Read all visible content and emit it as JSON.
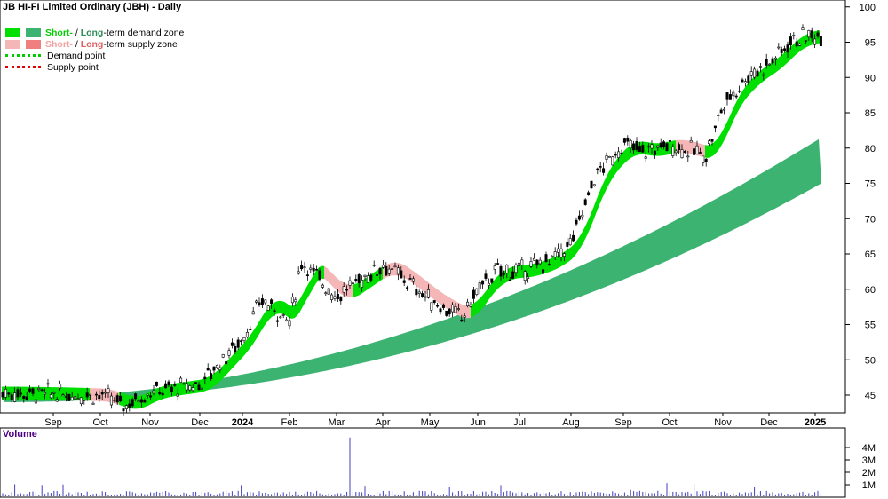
{
  "title": "JB HI-FI Limited Ordinary (JBH) - Daily",
  "legend": {
    "demand_short": "Short-",
    "demand_sep": " / ",
    "demand_long": "Long",
    "demand_rest": "-term demand zone",
    "supply_short": "Short-",
    "supply_sep": " / ",
    "supply_long": "Long",
    "supply_rest": "-term supply zone",
    "demand_point": "Demand point",
    "supply_point": "Supply point"
  },
  "volume_label": "Volume",
  "colors": {
    "short_demand": "#00e000",
    "long_demand": "#3cb371",
    "short_supply": "#f4b6b6",
    "long_supply": "#f08080",
    "demand_point": "#00cc00",
    "supply_point": "#e00000",
    "candle": "#000000",
    "volume": "#4040c0"
  },
  "chart_data": [
    {
      "type": "candlestick",
      "title": "JB HI-FI Limited Ordinary (JBH) - Daily",
      "x_ticks": [
        "Sep",
        "Oct",
        "Nov",
        "Dec",
        "2024",
        "Feb",
        "Mar",
        "Apr",
        "May",
        "Jun",
        "Jul",
        "Aug",
        "Sep",
        "Oct",
        "Nov",
        "Dec",
        "2025"
      ],
      "x_bold_ticks": [
        "2024",
        "2025"
      ],
      "y_ticks": [
        45,
        50,
        55,
        60,
        65,
        70,
        75,
        80,
        85,
        90,
        95,
        100
      ],
      "ylim": [
        40,
        100
      ],
      "price_path": [
        [
          "Aug 2023",
          45.3
        ],
        [
          "Sep",
          45.2
        ],
        [
          "Oct",
          45.0
        ],
        [
          "Oct mid",
          43.5
        ],
        [
          "Nov",
          45.5
        ],
        [
          "Dec",
          46.5
        ],
        [
          "Dec mid",
          50.0
        ],
        [
          "2024",
          53.0
        ],
        [
          "Jan mid",
          58.5
        ],
        [
          "Feb",
          55.5
        ],
        [
          "Feb mid",
          64.0
        ],
        [
          "Mar",
          59.0
        ],
        [
          "Apr",
          63.5
        ],
        [
          "Apr mid",
          61.0
        ],
        [
          "May",
          58.5
        ],
        [
          "May end",
          56.0
        ],
        [
          "Jun",
          60.0
        ],
        [
          "Jun mid",
          62.5
        ],
        [
          "Jul",
          62.5
        ],
        [
          "Jul mid",
          64.0
        ],
        [
          "Aug",
          66.5
        ],
        [
          "Aug mid",
          76.0
        ],
        [
          "Sep",
          80.5
        ],
        [
          "Sep end",
          79.5
        ],
        [
          "Oct",
          80.5
        ],
        [
          "Oct end",
          79.0
        ],
        [
          "Nov",
          86.0
        ],
        [
          "Nov mid",
          90.0
        ],
        [
          "Dec",
          92.0
        ],
        [
          "Dec mid",
          95.5
        ],
        [
          "2025",
          96.0
        ]
      ],
      "short_term_zone_end": [
        93.5,
        97.0
      ],
      "long_term_zone_end": [
        75.0,
        81.5
      ],
      "long_term_zone_start": [
        44.0,
        44.5
      ]
    },
    {
      "type": "bar",
      "title": "Volume",
      "y_ticks": [
        "1M",
        "2M",
        "3M",
        "4M"
      ],
      "ylim": [
        0,
        4.5
      ],
      "peak_value_M": 4.8,
      "typical_value_M": 0.4
    }
  ]
}
